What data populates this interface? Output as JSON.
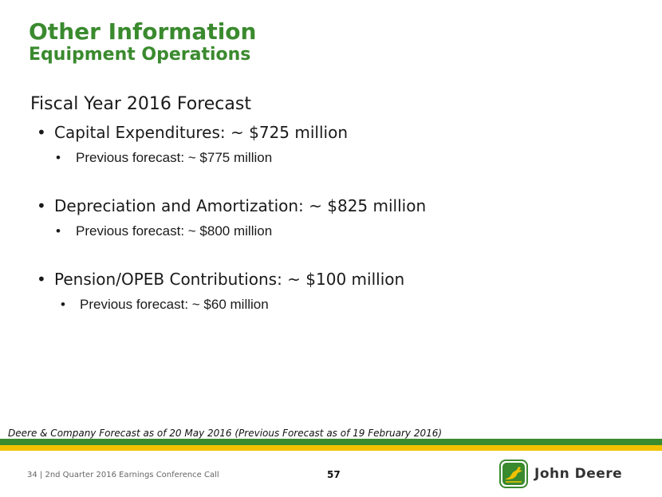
{
  "slide": {
    "title": "Other Information",
    "subtitle": "Equipment Operations",
    "heading": "Fiscal Year 2016 Forecast",
    "items": [
      {
        "label": "Capital Expenditures: ~ $725 million",
        "sub": "Previous forecast:  ~ $775 million"
      },
      {
        "label": "Depreciation and Amortization: ~ $825 million",
        "sub": "Previous forecast:  ~ $800 million"
      },
      {
        "label": "Pension/OPEB Contributions: ~ $100 million",
        "sub": "Previous forecast:  ~ $60 million"
      }
    ],
    "footnote": "Deere & Company Forecast as of 20 May 2016 (Previous Forecast as of 19 February 2016)"
  },
  "footer": {
    "left": "34  |  2nd Quarter 2016 Earnings Conference Call",
    "page_number": "57",
    "brand": "John Deere"
  },
  "colors": {
    "brand_green": "#3a8a2e",
    "brand_yellow": "#f2c200"
  },
  "icons": {
    "logo": "leaping-deer-icon"
  }
}
